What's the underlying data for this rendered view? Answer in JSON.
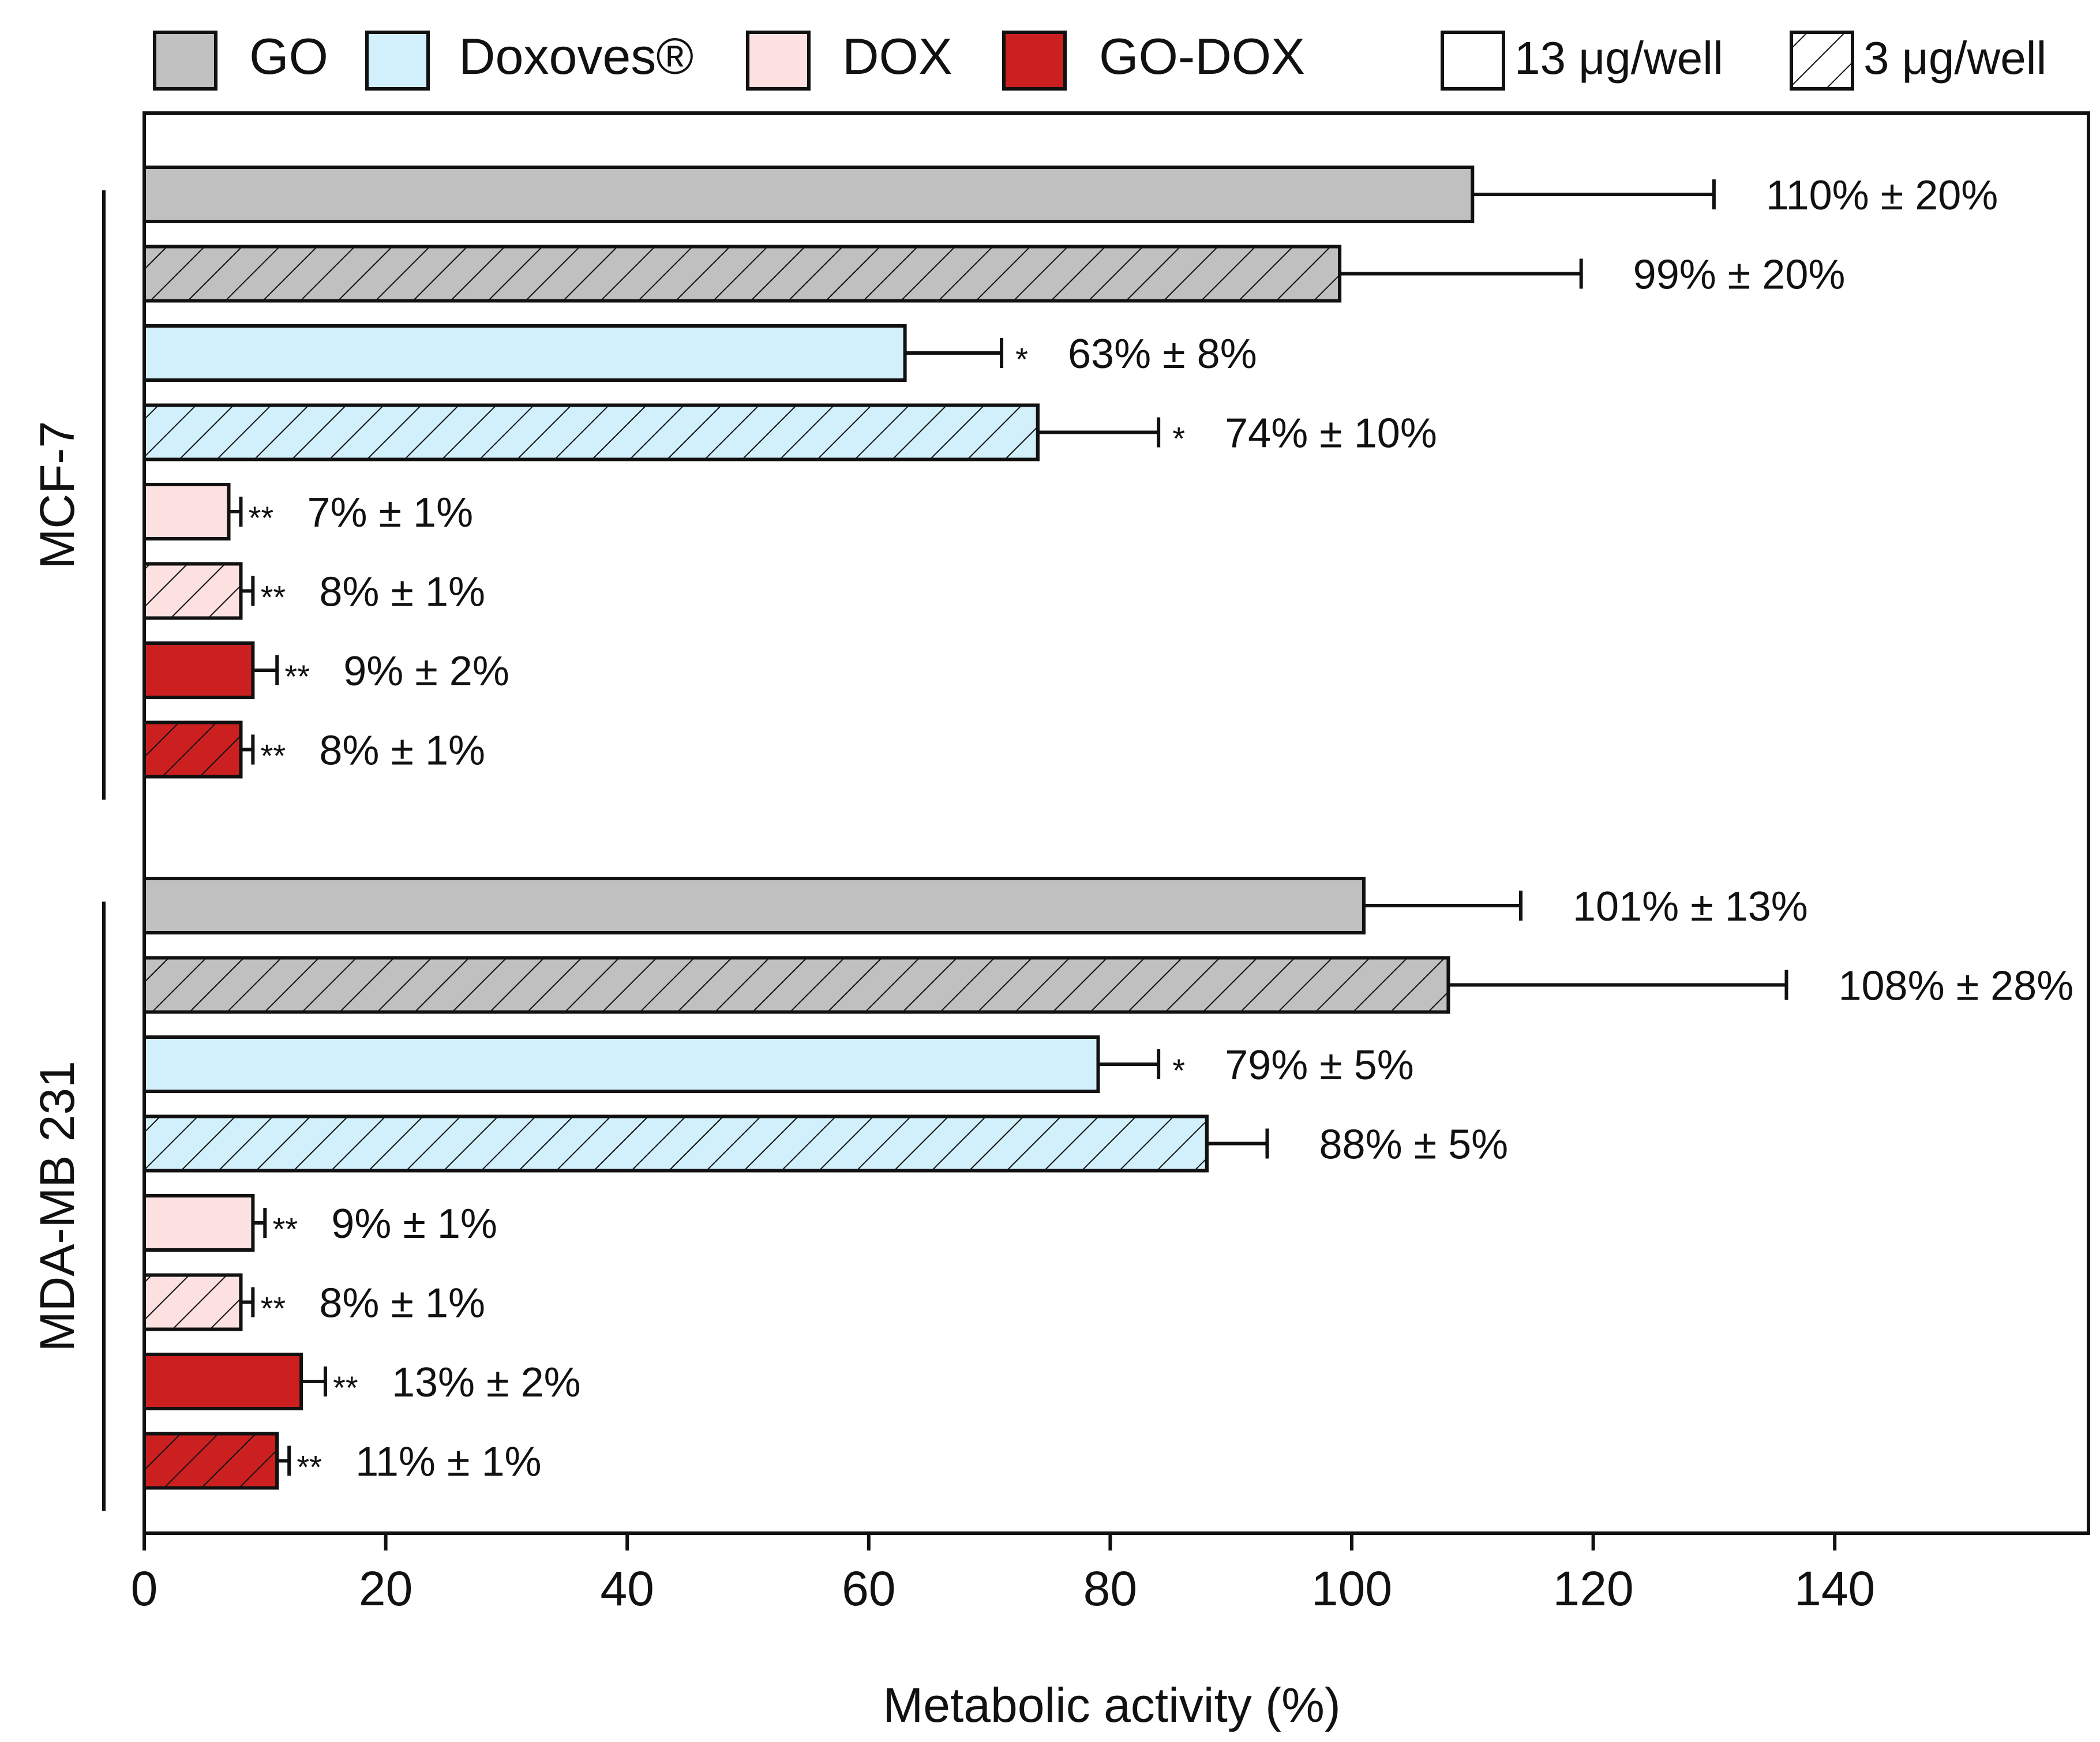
{
  "chart_data": {
    "type": "bar",
    "orientation": "horizontal",
    "xlabel": "Metabolic activity (%)",
    "xlim": [
      0,
      160
    ],
    "xticks": [
      0,
      20,
      40,
      60,
      80,
      100,
      120,
      140
    ],
    "grid": false,
    "legend_position": "top",
    "legend": [
      {
        "label": "GO",
        "color": "#c0c0c0",
        "hatch": false
      },
      {
        "label": "Doxoves®",
        "color": "#d2f0fb",
        "hatch": false
      },
      {
        "label": "DOX",
        "color": "#fde0e0",
        "hatch": false
      },
      {
        "label": "GO-DOX",
        "color": "#cc2020",
        "hatch": false
      },
      {
        "label": "13 μg/well",
        "color": "#ffffff",
        "hatch": false
      },
      {
        "label": "3 μg/well",
        "color": "#ffffff",
        "hatch": true
      }
    ],
    "groups": [
      {
        "name": "MCF-7",
        "bars": [
          {
            "treatment": "GO",
            "dose": "13 μg/well",
            "value": 110,
            "error": 20,
            "sig": "",
            "label": "110% ± 20%"
          },
          {
            "treatment": "GO",
            "dose": "3 μg/well",
            "value": 99,
            "error": 20,
            "sig": "",
            "label": "99% ± 20%"
          },
          {
            "treatment": "Doxoves®",
            "dose": "13 μg/well",
            "value": 63,
            "error": 8,
            "sig": "*",
            "label": "63% ± 8%"
          },
          {
            "treatment": "Doxoves®",
            "dose": "3 μg/well",
            "value": 74,
            "error": 10,
            "sig": "*",
            "label": "74% ± 10%"
          },
          {
            "treatment": "DOX",
            "dose": "13 μg/well",
            "value": 7,
            "error": 1,
            "sig": "**",
            "label": "7% ± 1%"
          },
          {
            "treatment": "DOX",
            "dose": "3 μg/well",
            "value": 8,
            "error": 1,
            "sig": "**",
            "label": "8% ± 1%"
          },
          {
            "treatment": "GO-DOX",
            "dose": "13 μg/well",
            "value": 9,
            "error": 2,
            "sig": "**",
            "label": "9% ± 2%"
          },
          {
            "treatment": "GO-DOX",
            "dose": "3 μg/well",
            "value": 8,
            "error": 1,
            "sig": "**",
            "label": "8% ± 1%"
          }
        ]
      },
      {
        "name": "MDA-MB 231",
        "bars": [
          {
            "treatment": "GO",
            "dose": "13 μg/well",
            "value": 101,
            "error": 13,
            "sig": "",
            "label": "101% ± 13%"
          },
          {
            "treatment": "GO",
            "dose": "3 μg/well",
            "value": 108,
            "error": 28,
            "sig": "",
            "label": "108% ± 28%"
          },
          {
            "treatment": "Doxoves®",
            "dose": "13 μg/well",
            "value": 79,
            "error": 5,
            "sig": "*",
            "label": "79% ± 5%"
          },
          {
            "treatment": "Doxoves®",
            "dose": "3 μg/well",
            "value": 88,
            "error": 5,
            "sig": "",
            "label": "88% ± 5%"
          },
          {
            "treatment": "DOX",
            "dose": "13 μg/well",
            "value": 9,
            "error": 1,
            "sig": "**",
            "label": "9% ± 1%"
          },
          {
            "treatment": "DOX",
            "dose": "3 μg/well",
            "value": 8,
            "error": 1,
            "sig": "**",
            "label": "8% ± 1%"
          },
          {
            "treatment": "GO-DOX",
            "dose": "13 μg/well",
            "value": 13,
            "error": 2,
            "sig": "**",
            "label": "13% ± 2%"
          },
          {
            "treatment": "GO-DOX",
            "dose": "3 μg/well",
            "value": 11,
            "error": 1,
            "sig": "**",
            "label": "11% ± 1%"
          }
        ]
      }
    ]
  }
}
